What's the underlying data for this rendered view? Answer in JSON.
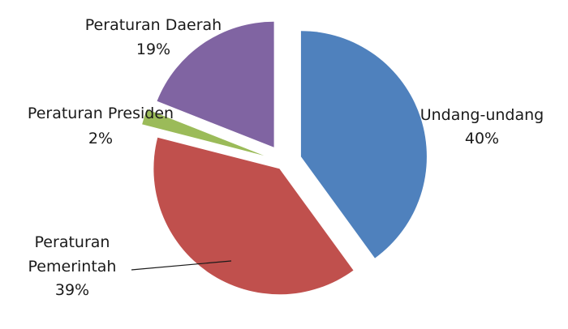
{
  "chart_data": {
    "type": "pie",
    "exploded": true,
    "slices": [
      {
        "label": "Undang-undang",
        "value": 40,
        "percent_label": "40%",
        "color": "#4f81bd"
      },
      {
        "label": "Peraturan Pemerintah",
        "value": 39,
        "percent_label": "39%",
        "color": "#c0504d"
      },
      {
        "label": "Peraturan Presiden",
        "value": 2,
        "percent_label": "2%",
        "color": "#9bbb59"
      },
      {
        "label": "Peraturan Daerah",
        "value": 19,
        "percent_label": "19%",
        "color": "#8064a2"
      }
    ],
    "labels": {
      "undang": {
        "line1": "Undang-undang",
        "pct": "40%"
      },
      "pemerintah": {
        "line1": "Peraturan",
        "line2": "Pemerintah",
        "pct": "39%"
      },
      "presiden": {
        "line1": "Peraturan Presiden",
        "pct": "2%"
      },
      "daerah": {
        "line1": "Peraturan Daerah",
        "pct": "19%"
      }
    }
  }
}
